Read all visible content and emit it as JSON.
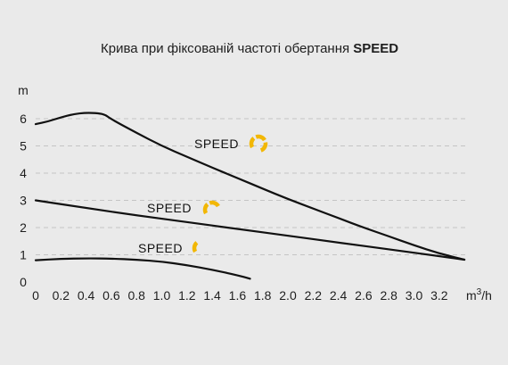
{
  "title": {
    "prefix": "Крива при фіксованій частоті обертання ",
    "bold": "SPEED"
  },
  "colors": {
    "background": "#eaeaea",
    "curve": "#111111",
    "grid": "#c4c4c4",
    "speed_icon": "#f2b705"
  },
  "chart_data": {
    "type": "line",
    "title": "Крива при фіксованій частоті обертання SPEED",
    "xlabel": "m³/h",
    "ylabel": "m",
    "xlim": [
      0,
      3.4
    ],
    "ylim": [
      0,
      7
    ],
    "grid": "horizontal dashed",
    "x_ticks": [
      "0",
      "0.2",
      "0.4",
      "0.6",
      "0.8",
      "1.0",
      "1.2",
      "1.4",
      "1.6",
      "1.8",
      "2.0",
      "2.2",
      "2.4",
      "2.6",
      "2.8",
      "3.0",
      "3.2"
    ],
    "y_ticks": [
      "0",
      "1",
      "2",
      "3",
      "4",
      "5",
      "6"
    ],
    "series": [
      {
        "name": "SPEED",
        "speed_level": "high",
        "x": [
          0,
          0.1,
          0.2,
          0.3,
          0.4,
          0.5,
          0.55,
          0.6,
          0.8,
          1.0,
          1.2,
          1.4,
          1.6,
          1.8,
          2.0,
          2.2,
          2.4,
          2.6,
          2.8,
          3.0,
          3.2,
          3.4
        ],
        "y": [
          5.8,
          5.9,
          6.05,
          6.17,
          6.22,
          6.2,
          6.15,
          5.98,
          5.48,
          5.0,
          4.6,
          4.2,
          3.82,
          3.43,
          3.05,
          2.7,
          2.35,
          2.0,
          1.68,
          1.35,
          1.05,
          0.82
        ]
      },
      {
        "name": "SPEED",
        "speed_level": "medium",
        "x": [
          0,
          0.4,
          0.8,
          1.2,
          1.6,
          2.0,
          2.4,
          2.8,
          3.2,
          3.4
        ],
        "y": [
          3.0,
          2.72,
          2.45,
          2.2,
          1.95,
          1.7,
          1.45,
          1.2,
          0.95,
          0.82
        ]
      },
      {
        "name": "SPEED",
        "speed_level": "low",
        "x": [
          0,
          0.2,
          0.4,
          0.6,
          0.8,
          1.0,
          1.2,
          1.4,
          1.6,
          1.7
        ],
        "y": [
          0.8,
          0.85,
          0.87,
          0.86,
          0.82,
          0.75,
          0.62,
          0.45,
          0.25,
          0.12
        ]
      }
    ],
    "labels": [
      {
        "text": "SPEED",
        "series": 0,
        "icon": "speed-high-icon"
      },
      {
        "text": "SPEED",
        "series": 1,
        "icon": "speed-medium-icon"
      },
      {
        "text": "SPEED",
        "series": 2,
        "icon": "speed-low-icon"
      }
    ]
  }
}
